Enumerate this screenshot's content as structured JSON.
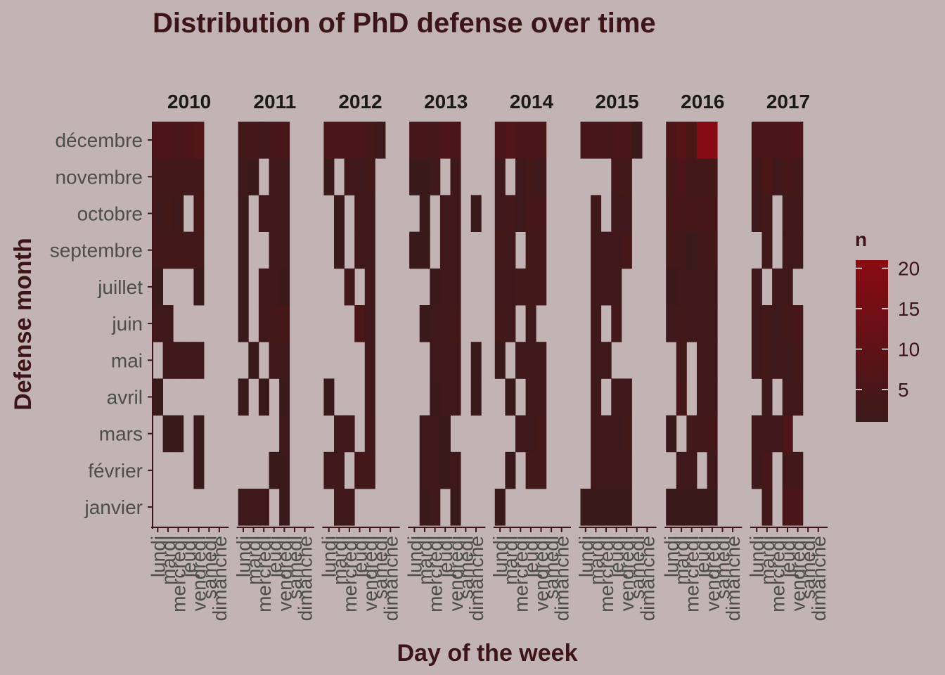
{
  "chart_data": {
    "type": "heatmap",
    "title": "Distribution of PhD defense over time",
    "xlabel": "Day of the week",
    "ylabel": "Defense month",
    "facets": [
      "2010",
      "2011",
      "2012",
      "2013",
      "2014",
      "2015",
      "2016",
      "2017"
    ],
    "days": [
      "lundi",
      "mardi",
      "mercredi",
      "jeudi",
      "vendredi",
      "samedi",
      "dimanche"
    ],
    "months": [
      "janvier",
      "février",
      "mars",
      "avril",
      "mai",
      "juin",
      "juillet",
      "septembre",
      "octobre",
      "novembre",
      "décembre"
    ],
    "values": {
      "2010": [
        [
          0,
          0,
          0,
          0,
          0,
          0,
          0
        ],
        [
          0,
          0,
          0,
          0,
          1,
          0,
          0
        ],
        [
          0,
          1,
          1,
          0,
          1,
          0,
          0
        ],
        [
          1,
          0,
          0,
          0,
          0,
          0,
          0
        ],
        [
          0,
          2,
          2,
          2,
          2,
          0,
          0
        ],
        [
          2,
          2,
          0,
          0,
          0,
          0,
          0
        ],
        [
          1,
          0,
          0,
          0,
          1,
          0,
          0
        ],
        [
          3,
          3,
          3,
          3,
          3,
          0,
          0
        ],
        [
          2,
          3,
          2,
          0,
          4,
          0,
          0
        ],
        [
          3,
          3,
          3,
          3,
          3,
          0,
          0
        ],
        [
          6,
          6,
          5,
          6,
          7,
          0,
          0
        ]
      ],
      "2011": [
        [
          2,
          2,
          2,
          0,
          1,
          0,
          0
        ],
        [
          0,
          0,
          0,
          1,
          1,
          0,
          0
        ],
        [
          0,
          0,
          0,
          0,
          2,
          0,
          0
        ],
        [
          1,
          0,
          1,
          0,
          1,
          0,
          0
        ],
        [
          0,
          1,
          0,
          2,
          2,
          0,
          0
        ],
        [
          1,
          0,
          2,
          3,
          4,
          0,
          0
        ],
        [
          1,
          0,
          2,
          2,
          1,
          0,
          0
        ],
        [
          1,
          0,
          0,
          2,
          2,
          0,
          0
        ],
        [
          1,
          0,
          2,
          2,
          2,
          0,
          0
        ],
        [
          2,
          1,
          0,
          2,
          2,
          0,
          0
        ],
        [
          3,
          4,
          2,
          4,
          5,
          0,
          0
        ]
      ],
      "2012": [
        [
          0,
          2,
          2,
          0,
          0,
          0,
          0
        ],
        [
          2,
          2,
          0,
          3,
          3,
          0,
          0
        ],
        [
          0,
          2,
          2,
          0,
          3,
          0,
          0
        ],
        [
          1,
          0,
          0,
          0,
          2,
          0,
          0
        ],
        [
          0,
          0,
          0,
          0,
          2,
          0,
          0
        ],
        [
          0,
          0,
          0,
          5,
          2,
          0,
          0
        ],
        [
          0,
          0,
          3,
          0,
          2,
          0,
          0
        ],
        [
          0,
          1,
          0,
          2,
          2,
          0,
          0
        ],
        [
          0,
          1,
          0,
          2,
          2,
          0,
          0
        ],
        [
          1,
          0,
          2,
          2,
          3,
          0,
          0
        ],
        [
          5,
          5,
          5,
          5,
          3,
          2,
          0
        ]
      ],
      "2013": [
        [
          0,
          1,
          2,
          0,
          1,
          0,
          0
        ],
        [
          0,
          2,
          2,
          1,
          2,
          0,
          0
        ],
        [
          0,
          2,
          2,
          1,
          0,
          0,
          0
        ],
        [
          0,
          0,
          1,
          2,
          2,
          0,
          1
        ],
        [
          0,
          0,
          2,
          2,
          2,
          0,
          1
        ],
        [
          0,
          1,
          2,
          2,
          3,
          0,
          0
        ],
        [
          0,
          0,
          1,
          2,
          2,
          0,
          0
        ],
        [
          1,
          1,
          0,
          2,
          2,
          0,
          0
        ],
        [
          0,
          1,
          0,
          2,
          2,
          0,
          1
        ],
        [
          1,
          1,
          2,
          0,
          2,
          0,
          0
        ],
        [
          4,
          4,
          4,
          6,
          5,
          0,
          0
        ]
      ],
      "2014": [
        [
          1,
          0,
          0,
          0,
          0,
          0,
          0
        ],
        [
          0,
          1,
          0,
          3,
          3,
          0,
          0
        ],
        [
          0,
          0,
          2,
          2,
          3,
          0,
          0
        ],
        [
          0,
          1,
          0,
          2,
          2,
          0,
          0
        ],
        [
          1,
          0,
          2,
          2,
          2,
          0,
          0
        ],
        [
          3,
          2,
          0,
          2,
          0,
          0,
          0
        ],
        [
          2,
          2,
          3,
          3,
          3,
          0,
          0
        ],
        [
          3,
          2,
          0,
          3,
          3,
          0,
          0
        ],
        [
          2,
          3,
          2,
          4,
          4,
          0,
          0
        ],
        [
          2,
          0,
          2,
          3,
          2,
          0,
          0
        ],
        [
          5,
          7,
          5,
          5,
          5,
          0,
          0
        ]
      ],
      "2015": [
        [
          1,
          1,
          1,
          1,
          1,
          0,
          0
        ],
        [
          0,
          2,
          2,
          2,
          2,
          0,
          0
        ],
        [
          0,
          2,
          2,
          2,
          3,
          0,
          0
        ],
        [
          0,
          2,
          0,
          2,
          2,
          0,
          0
        ],
        [
          0,
          2,
          2,
          0,
          0,
          0,
          0
        ],
        [
          0,
          2,
          0,
          3,
          0,
          0,
          0
        ],
        [
          0,
          2,
          2,
          2,
          0,
          0,
          0
        ],
        [
          0,
          2,
          2,
          2,
          4,
          0,
          0
        ],
        [
          0,
          2,
          0,
          2,
          2,
          0,
          0
        ],
        [
          0,
          0,
          0,
          3,
          3,
          0,
          0
        ],
        [
          4,
          4,
          4,
          5,
          5,
          1,
          0
        ]
      ],
      "2016": [
        [
          1,
          1,
          1,
          1,
          1,
          0,
          0
        ],
        [
          0,
          2,
          2,
          0,
          2,
          0,
          0
        ],
        [
          1,
          0,
          3,
          3,
          4,
          0,
          0
        ],
        [
          0,
          4,
          0,
          2,
          2,
          0,
          0
        ],
        [
          0,
          3,
          0,
          2,
          2,
          0,
          0
        ],
        [
          2,
          3,
          2,
          2,
          2,
          0,
          0
        ],
        [
          1,
          2,
          2,
          2,
          2,
          0,
          0
        ],
        [
          3,
          3,
          1,
          3,
          3,
          0,
          0
        ],
        [
          4,
          4,
          4,
          4,
          4,
          0,
          0
        ],
        [
          3,
          6,
          3,
          3,
          3,
          0,
          0
        ],
        [
          6,
          8,
          5,
          20,
          20,
          0,
          0
        ]
      ],
      "2017": [
        [
          0,
          3,
          0,
          5,
          5,
          0,
          0
        ],
        [
          2,
          4,
          0,
          3,
          3,
          0,
          0
        ],
        [
          2,
          2,
          2,
          6,
          0,
          0,
          0
        ],
        [
          0,
          2,
          0,
          2,
          2,
          0,
          0
        ],
        [
          2,
          3,
          2,
          2,
          3,
          0,
          0
        ],
        [
          2,
          3,
          2,
          3,
          4,
          0,
          0
        ],
        [
          2,
          0,
          2,
          2,
          0,
          0,
          0
        ],
        [
          0,
          3,
          0,
          2,
          2,
          0,
          0
        ],
        [
          2,
          3,
          0,
          2,
          2,
          0,
          0
        ],
        [
          2,
          5,
          2,
          4,
          3,
          0,
          0
        ],
        [
          5,
          5,
          5,
          5,
          6,
          0,
          0
        ]
      ]
    },
    "legend": {
      "title": "n",
      "ticks": [
        5,
        10,
        15,
        20
      ],
      "domain": [
        1,
        21
      ]
    },
    "colors": {
      "low": "#3a191a",
      "high": "#8b0a12",
      "background": "#c2b4b4",
      "axis": "#3d1418"
    },
    "grid": false,
    "legend_position": "right"
  }
}
